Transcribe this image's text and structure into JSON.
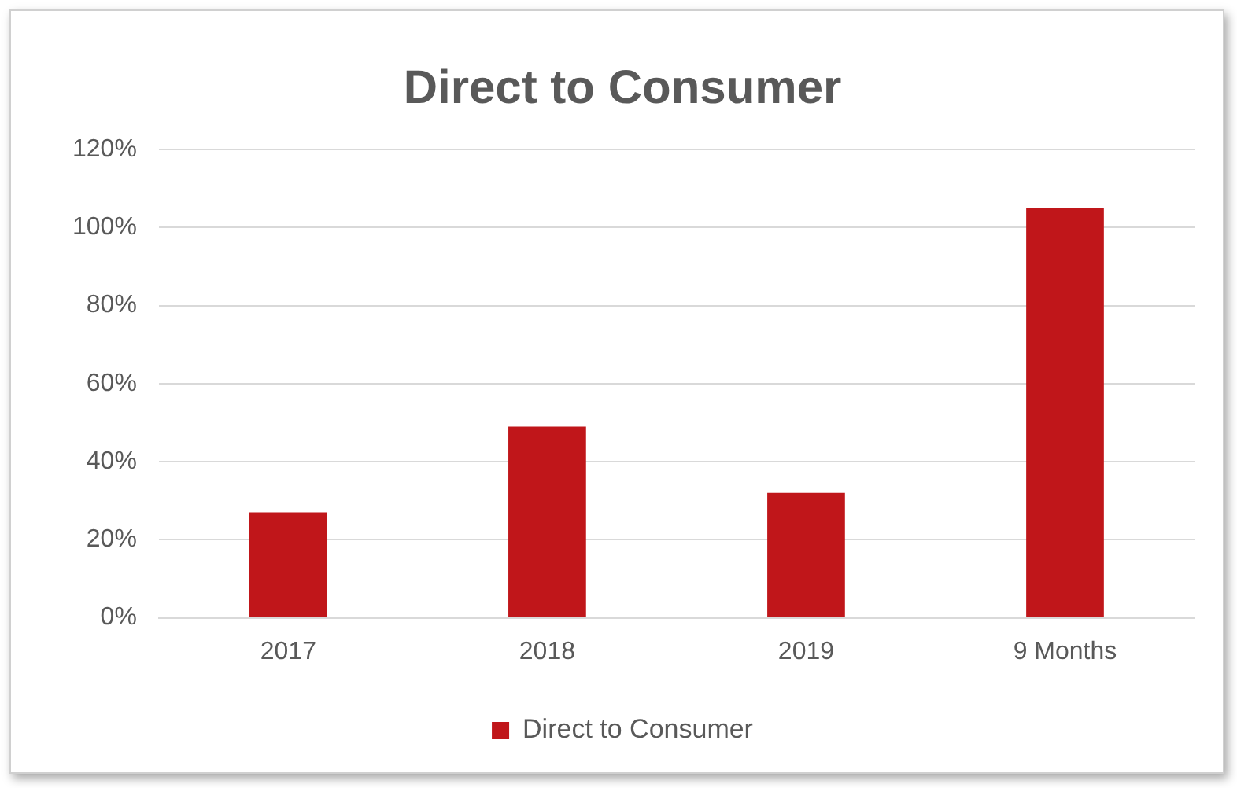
{
  "chart_data": {
    "type": "bar",
    "title": "Direct to Consumer",
    "categories": [
      "2017",
      "2018",
      "2019",
      "9 Months"
    ],
    "series": [
      {
        "name": "Direct to Consumer",
        "color": "#c0161a",
        "values": [
          27,
          49,
          32,
          105
        ]
      }
    ],
    "ylim": [
      0,
      120
    ],
    "yticks": [
      {
        "value": 0,
        "label": "0%"
      },
      {
        "value": 20,
        "label": "20%"
      },
      {
        "value": 40,
        "label": "40%"
      },
      {
        "value": 60,
        "label": "60%"
      },
      {
        "value": 80,
        "label": "80%"
      },
      {
        "value": 100,
        "label": "100%"
      },
      {
        "value": 120,
        "label": "120%"
      }
    ],
    "grid": "y",
    "legend": "bottom"
  }
}
